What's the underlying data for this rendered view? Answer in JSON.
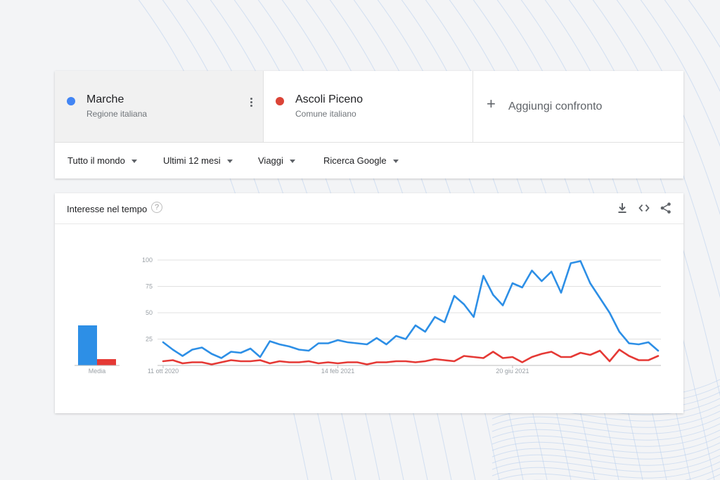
{
  "terms": [
    {
      "name": "Marche",
      "subtitle": "Regione italiana",
      "color": "#4285f4"
    },
    {
      "name": "Ascoli Piceno",
      "subtitle": "Comune italiano",
      "color": "#db4437"
    }
  ],
  "add_compare": {
    "icon": "+",
    "label": "Aggiungi confronto"
  },
  "filters": {
    "region": "Tutto il mondo",
    "period": "Ultimi 12 mesi",
    "category": "Viaggi",
    "search_type": "Ricerca Google"
  },
  "panel": {
    "title": "Interesse nel tempo",
    "help_icon": "?",
    "icons": [
      "download-icon",
      "embed-icon",
      "share-icon"
    ]
  },
  "chart_data": {
    "type": "line",
    "x_tick_labels": [
      "11 ott 2020",
      "14 feb 2021",
      "20 giu 2021"
    ],
    "y_ticks": [
      25,
      50,
      75,
      100
    ],
    "ylim": [
      0,
      100
    ],
    "grid": true,
    "average": {
      "label": "Media",
      "values": [
        38,
        6
      ]
    },
    "series": [
      {
        "name": "Marche",
        "color": "#2d8fe6",
        "values": [
          22,
          15,
          9,
          15,
          17,
          11,
          7,
          13,
          12,
          16,
          8,
          23,
          20,
          18,
          15,
          14,
          21,
          21,
          24,
          22,
          21,
          20,
          26,
          20,
          28,
          25,
          38,
          32,
          46,
          41,
          66,
          58,
          46,
          85,
          67,
          57,
          78,
          74,
          90,
          80,
          89,
          69,
          97,
          99,
          78,
          64,
          50,
          32,
          21,
          20,
          22,
          14
        ]
      },
      {
        "name": "Ascoli Piceno",
        "color": "#e53935",
        "values": [
          4,
          5,
          2,
          3,
          3,
          1,
          3,
          5,
          4,
          4,
          5,
          2,
          4,
          3,
          3,
          4,
          2,
          3,
          2,
          3,
          3,
          1,
          3,
          3,
          4,
          4,
          3,
          4,
          6,
          5,
          4,
          9,
          8,
          7,
          13,
          7,
          8,
          3,
          8,
          11,
          13,
          8,
          8,
          12,
          10,
          14,
          4,
          15,
          9,
          5,
          5,
          9
        ]
      }
    ]
  }
}
